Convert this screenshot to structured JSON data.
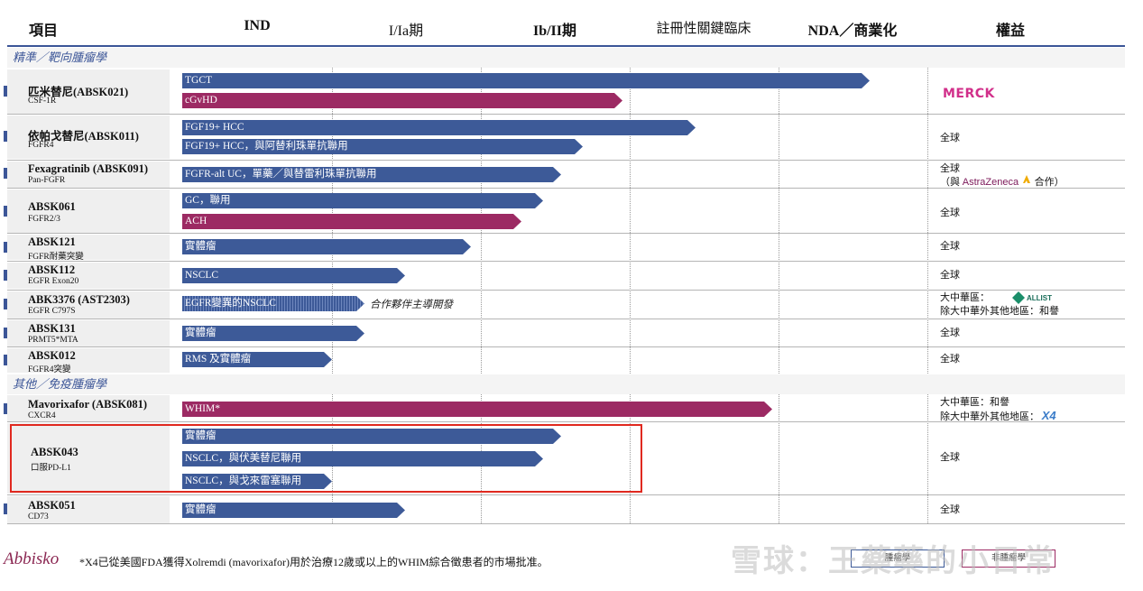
{
  "headers": [
    "項目",
    "IND",
    "I/Ia期",
    "Ib/II期",
    "註冊性關鍵臨床",
    "NDA／商業化",
    "權益"
  ],
  "sections": [
    "精準／靶向腫瘤學",
    "其他／免疫腫瘤學"
  ],
  "rows": [
    {
      "name": "匹米替尼(ABSK021)",
      "target": "CSF-1R",
      "bars": [
        "TGCT",
        "cGvHD"
      ],
      "rights": ""
    },
    {
      "name": "依帕戈替尼(ABSK011)",
      "target": "FGFR4",
      "bars": [
        "FGF19+ HCC",
        "FGF19+ HCC，與阿替利珠單抗聯用"
      ],
      "rights": "全球"
    },
    {
      "name": "Fexagratinib (ABSK091)",
      "target": "Pan-FGFR",
      "bars": [
        "FGFR-alt UC，單藥／與替雷利珠單抗聯用"
      ],
      "rights": "全球",
      "rights2": "（與",
      "rights3": "合作）"
    },
    {
      "name": "ABSK061",
      "target": "FGFR2/3",
      "bars": [
        "GC，聯用",
        "ACH"
      ],
      "rights": "全球"
    },
    {
      "name": "ABSK121",
      "target": "FGFR耐藥突變",
      "bars": [
        "實體瘤"
      ],
      "rights": "全球"
    },
    {
      "name": "ABSK112",
      "target": "EGFR Exon20",
      "bars": [
        "NSCLC"
      ],
      "rights": "全球"
    },
    {
      "name": "ABK3376 (AST2303)",
      "target": "EGFR C797S",
      "bars": [
        "EGFR變異的NSCLC"
      ],
      "note": "合作夥伴主導開發",
      "rights": "大中華區：",
      "rights2": "除大中華外其他地區：和譽"
    },
    {
      "name": "ABSK131",
      "target": "PRMT5*MTA",
      "bars": [
        "實體瘤"
      ],
      "rights": "全球"
    },
    {
      "name": "ABSK012",
      "target": "FGFR4突變",
      "bars": [
        "RMS 及實體瘤"
      ],
      "rights": "全球"
    },
    {
      "name": "Mavorixafor (ABSK081)",
      "target": "CXCR4",
      "bars": [
        "WHIM*"
      ],
      "rights": "大中華區：和譽",
      "rights2": "除大中華外其他地區："
    },
    {
      "name": "ABSK043",
      "target": "口服PD-L1",
      "bars": [
        "實體瘤",
        "NSCLC，與伏美替尼聯用",
        "NSCLC，與戈來雷塞聯用"
      ],
      "rights": "全球"
    },
    {
      "name": "ABSK051",
      "target": "CD73",
      "bars": [
        "實體瘤"
      ],
      "rights": "全球"
    }
  ],
  "logos": {
    "merck": "MERCK",
    "astrazeneca": "AstraZeneca",
    "allist": "ALLIST",
    "x4": "X4",
    "abbisko": "Abbisko"
  },
  "footer": {
    "note": "*X4已從美國FDA獲得Xolremdi (mavorixafor)用於治療12歲或以上的WHIM綜合徵患者的市場批准。"
  },
  "watermark": "雪球：王藥藥的小日常",
  "legend": [
    "腫瘤學",
    "非腫瘤學"
  ],
  "colors": {
    "blue": "#3d5a98",
    "maroon": "#9c2a63",
    "highlight": "#e0291f"
  }
}
